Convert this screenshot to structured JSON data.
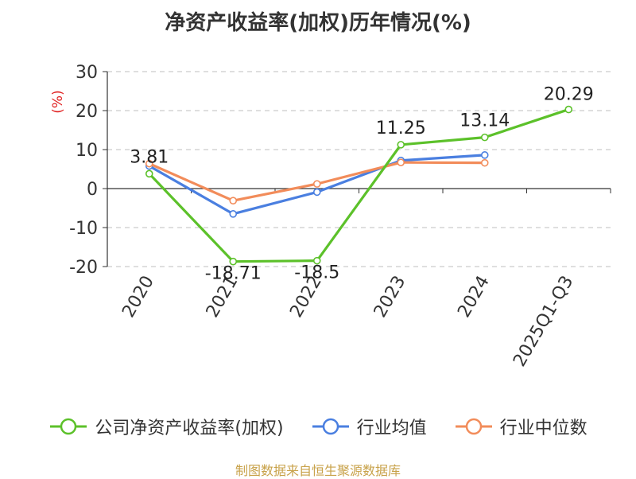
{
  "chart_data": {
    "type": "line",
    "title": "净资产收益率(加权)历年情况(%)",
    "ylabel": "(%)",
    "xlabel": "",
    "categories": [
      "2020",
      "2021",
      "2022",
      "2023",
      "2024",
      "2025Q1-Q3"
    ],
    "ylim": [
      -20,
      30
    ],
    "yticks": [
      30,
      20,
      10,
      0,
      -10,
      -20
    ],
    "grid": true,
    "legend_position": "bottom",
    "series": [
      {
        "name": "公司净资产收益率(加权)",
        "color": "#5cc12a",
        "values": [
          3.81,
          -18.71,
          -18.5,
          11.25,
          13.14,
          20.29
        ],
        "labels": [
          "3.81",
          "-18.71",
          "-18.5",
          "11.25",
          "13.14",
          "20.29"
        ]
      },
      {
        "name": "行业均值",
        "color": "#4a7fe0",
        "values": [
          5.8,
          -6.5,
          -0.9,
          7.2,
          8.6,
          null
        ]
      },
      {
        "name": "行业中位数",
        "color": "#f28c5a",
        "values": [
          6.4,
          -3.1,
          1.2,
          6.7,
          6.6,
          null
        ]
      }
    ]
  },
  "source_note": "制图数据来自恒生聚源数据库"
}
